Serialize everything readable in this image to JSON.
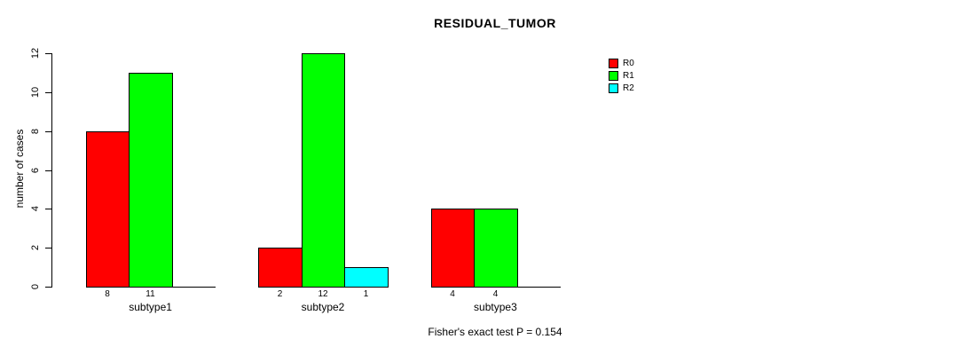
{
  "page": {
    "background_color": "#ffffff"
  },
  "chart_data": {
    "type": "bar",
    "grouped": true,
    "title": "RESIDUAL_TUMOR",
    "xlabel": "",
    "ylabel": "number of cases",
    "ylim": [
      0,
      12
    ],
    "yticks": [
      0,
      2,
      4,
      6,
      8,
      10,
      12
    ],
    "categories": [
      "subtype1",
      "subtype2",
      "subtype3"
    ],
    "series": [
      {
        "name": "R0",
        "color": "#ff0000",
        "values": [
          8,
          2,
          4
        ]
      },
      {
        "name": "R1",
        "color": "#00ff00",
        "values": [
          11,
          12,
          4
        ]
      },
      {
        "name": "R2",
        "color": "#00ffff",
        "values": [
          0,
          1,
          0
        ]
      }
    ],
    "show_bar_value_labels": true,
    "hide_zero_value_bars": true,
    "bar_border_color": "#000000",
    "axis_color": "#000000",
    "grid": false,
    "legend_position": "top-right",
    "legend_entries": [
      "R0",
      "R1",
      "R2"
    ],
    "annotation": "Fisher's exact test P = 0.154"
  }
}
